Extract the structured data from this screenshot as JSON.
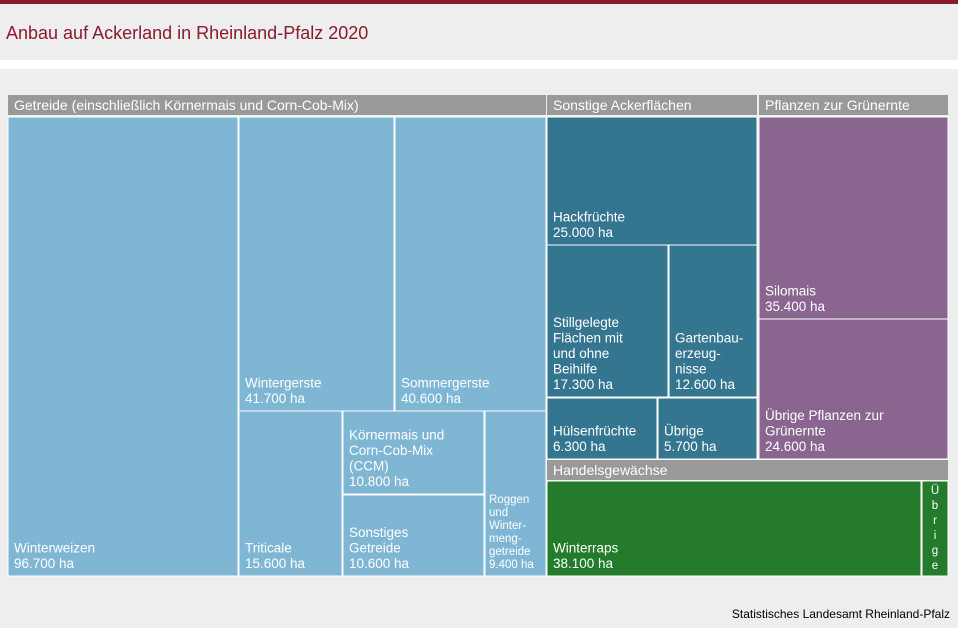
{
  "page": {
    "title": "Anbau auf Ackerland in Rheinland-Pfalz 2020",
    "source": "Statistisches Landesamt  Rheinland-Pfalz"
  },
  "colors": {
    "brand": "#8b1a2f",
    "header_bg": "#999999",
    "getreide": "#7fb6d4",
    "sonstige": "#347590",
    "gruenernte": "#896590",
    "handel": "#237b2b"
  },
  "chart_data": {
    "type": "treemap",
    "unit": "ha",
    "groups": [
      {
        "name": "Getreide (einschließlich Körnermais und Corn-Cob-Mix)",
        "items": [
          {
            "name": "Winterweizen",
            "value": 96700,
            "label_lines": [
              "Winterweizen",
              "96.700 ha"
            ]
          },
          {
            "name": "Wintergerste",
            "value": 41700,
            "label_lines": [
              "Wintergerste",
              "41.700 ha"
            ]
          },
          {
            "name": "Sommergerste",
            "value": 40600,
            "label_lines": [
              "Sommergerste",
              "40.600 ha"
            ]
          },
          {
            "name": "Triticale",
            "value": 15600,
            "label_lines": [
              "Triticale",
              "15.600 ha"
            ]
          },
          {
            "name": "Körnermais und Corn-Cob-Mix (CCM)",
            "value": 10800,
            "label_lines": [
              "Körnermais und",
              "Corn-Cob-Mix",
              "(CCM)",
              "10.800 ha"
            ]
          },
          {
            "name": "Sonstiges Getreide",
            "value": 10600,
            "label_lines": [
              "Sonstiges",
              "Getreide",
              "10.600 ha"
            ]
          },
          {
            "name": "Roggen und Wintermenggetreide",
            "value": 9400,
            "label_lines": [
              "Roggen",
              "und",
              "Winter-",
              "meng-",
              "getreide",
              "9.400 ha"
            ]
          }
        ]
      },
      {
        "name": "Sonstige Ackerflächen",
        "items": [
          {
            "name": "Hackfrüchte",
            "value": 25000,
            "label_lines": [
              "Hackfrüchte",
              "25.000 ha"
            ]
          },
          {
            "name": "Stillgelegte Flächen mit und ohne Beihilfe",
            "value": 17300,
            "label_lines": [
              "Stillgelegte",
              "Flächen mit",
              "und ohne",
              "Beihilfe",
              "17.300 ha"
            ]
          },
          {
            "name": "Gartenbauerzeugnisse",
            "value": 12600,
            "label_lines": [
              "Gartenbau-",
              "erzeug-",
              "nisse",
              "12.600 ha"
            ]
          },
          {
            "name": "Hülsenfrüchte",
            "value": 6300,
            "label_lines": [
              "Hülsenfrüchte",
              "6.300 ha"
            ]
          },
          {
            "name": "Übrige",
            "value": 5700,
            "label_lines": [
              "Übrige",
              "5.700 ha"
            ]
          }
        ]
      },
      {
        "name": "Pflanzen zur Grünernte",
        "items": [
          {
            "name": "Silomais",
            "value": 35400,
            "label_lines": [
              "Silomais",
              "35.400 ha"
            ]
          },
          {
            "name": "Übrige Pflanzen zur Grünernte",
            "value": 24600,
            "label_lines": [
              "Übrige Pflanzen zur",
              "Grünernte",
              "24.600 ha"
            ]
          }
        ]
      },
      {
        "name": "Handelsgewächse",
        "items": [
          {
            "name": "Winterraps",
            "value": 38100,
            "label_lines": [
              "Winterraps",
              "38.100 ha"
            ]
          },
          {
            "name": "Übrige",
            "value": null,
            "label_lines": [
              "Ü",
              "b",
              "r",
              "i",
              "g",
              "e"
            ]
          }
        ]
      }
    ]
  }
}
